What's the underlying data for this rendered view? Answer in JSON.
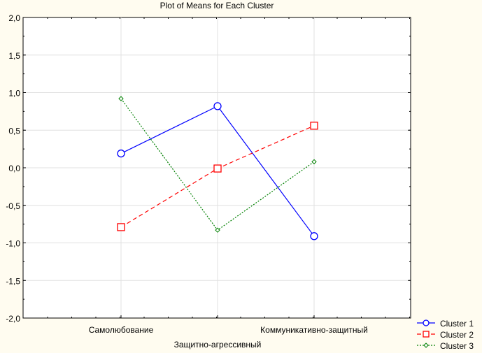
{
  "chart_data": {
    "type": "line",
    "title": "Plot of Means for Each Cluster",
    "xlabel": "",
    "ylabel": "",
    "categories": [
      "Самолюбование",
      "Защитно-агрессивный",
      "Коммуникативно-защитный"
    ],
    "ylim": [
      -2.0,
      2.0
    ],
    "yticks": [
      "2,0",
      "1,5",
      "1,0",
      "0,5",
      "0,0",
      "-0,5",
      "-1,0",
      "-1,5",
      "-2,0"
    ],
    "ytick_values": [
      2.0,
      1.5,
      1.0,
      0.5,
      0.0,
      -0.5,
      -1.0,
      -1.5,
      -2.0
    ],
    "grid": true,
    "legend_placement": "bottom-right",
    "series": [
      {
        "name": "Cluster 1",
        "values": [
          0.19,
          0.82,
          -0.91
        ],
        "color": "#0000ff",
        "marker": "circle",
        "dash": "solid"
      },
      {
        "name": "Cluster 2",
        "values": [
          -0.79,
          -0.01,
          0.56
        ],
        "color": "#ff0000",
        "marker": "square",
        "dash": "dashed"
      },
      {
        "name": "Cluster 3",
        "values": [
          0.92,
          -0.83,
          0.08
        ],
        "color": "#008000",
        "marker": "diamond",
        "dash": "dotted"
      }
    ]
  }
}
